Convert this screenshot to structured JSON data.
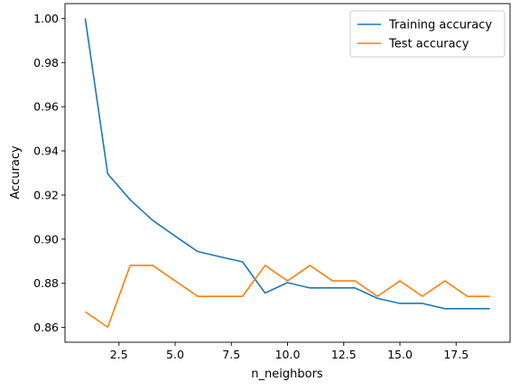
{
  "chart_data": {
    "type": "line",
    "xlabel": "n_neighbors",
    "ylabel": "Accuracy",
    "xlim": [
      0.1,
      19.9
    ],
    "ylim": [
      0.8533,
      1.0067
    ],
    "xticks": [
      2.5,
      5.0,
      7.5,
      10.0,
      12.5,
      15.0,
      17.5
    ],
    "xtick_labels": [
      "2.5",
      "5.0",
      "7.5",
      "10.0",
      "12.5",
      "15.0",
      "17.5"
    ],
    "yticks": [
      0.86,
      0.88,
      0.9,
      0.92,
      0.94,
      0.96,
      0.98,
      1.0
    ],
    "ytick_labels": [
      "0.86",
      "0.88",
      "0.90",
      "0.92",
      "0.94",
      "0.96",
      "0.98",
      "1.00"
    ],
    "grid": false,
    "legend_position": "top-right",
    "x": [
      1,
      2,
      3,
      4,
      5,
      6,
      7,
      8,
      9,
      10,
      11,
      12,
      13,
      14,
      15,
      16,
      17,
      18,
      19
    ],
    "series": [
      {
        "name": "Training accuracy",
        "color": "#1f77b4",
        "values": [
          1.0,
          0.9296,
          0.9178,
          0.9085,
          0.9014,
          0.8944,
          0.892,
          0.8897,
          0.8756,
          0.8803,
          0.8779,
          0.8779,
          0.8779,
          0.8732,
          0.8709,
          0.8709,
          0.8685,
          0.8685,
          0.8685
        ]
      },
      {
        "name": "Test accuracy",
        "color": "#ff7f0e",
        "values": [
          0.8671,
          0.8601,
          0.8881,
          0.8881,
          0.8811,
          0.8741,
          0.8741,
          0.8741,
          0.8881,
          0.8811,
          0.8881,
          0.8811,
          0.8811,
          0.8741,
          0.8811,
          0.8741,
          0.8811,
          0.8741,
          0.8741
        ]
      }
    ]
  }
}
